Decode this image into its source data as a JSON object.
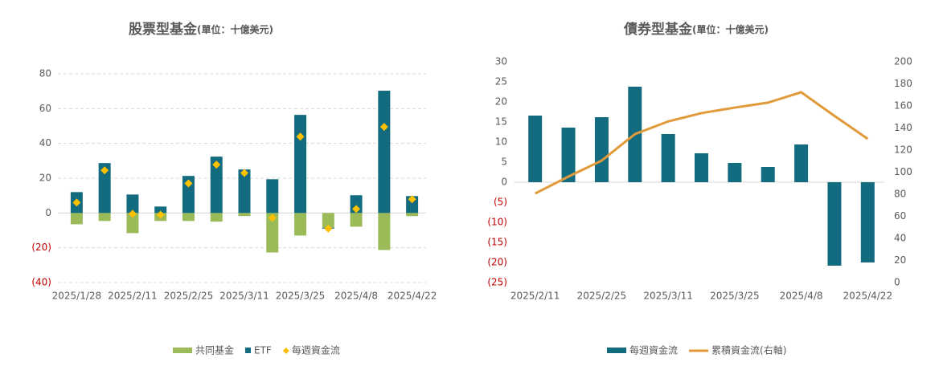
{
  "chart_data": [
    {
      "type": "combo",
      "title": "股票型基金",
      "subtitle": "(單位：十億美元)",
      "categories": [
        "2025/1/28",
        null,
        "2025/2/11",
        null,
        "2025/2/25",
        null,
        "2025/3/11",
        null,
        "2025/3/25",
        null,
        "2025/4/8",
        null,
        "2025/4/22"
      ],
      "series": [
        {
          "name": "共同基金",
          "type": "bar",
          "color": "#9bbb59",
          "values": [
            -6.5,
            -4.6,
            -11.6,
            -4.6,
            -4.6,
            -5,
            -1.8,
            -22.7,
            -13,
            -8.5,
            -7.9,
            -21.3,
            -1.8
          ]
        },
        {
          "name": "ETF",
          "type": "bar",
          "color": "#136b80",
          "values": [
            12,
            28.7,
            10.6,
            3.7,
            21.3,
            32.4,
            25,
            19.4,
            56.4,
            -0.5,
            10.2,
            70.3,
            9.7
          ]
        },
        {
          "name": "每週資金流",
          "type": "scatter",
          "color": "#ffc000",
          "values": [
            6,
            24.5,
            -0.5,
            -1,
            17,
            27.8,
            23,
            -2.8,
            43.9,
            -9,
            2.3,
            49.5,
            7.9
          ]
        }
      ],
      "ylim": [
        -40,
        80
      ],
      "yticks": [
        {
          "value": -40,
          "label": "(40)"
        },
        {
          "value": -20,
          "label": "(20)"
        },
        0,
        20,
        40,
        60,
        80
      ],
      "negative_tick_color": "#c00000",
      "grid": true,
      "legend": "bottom"
    },
    {
      "type": "combo",
      "title": "債券型基金",
      "subtitle": "(單位：十億美元)",
      "categories": [
        "2025/2/11",
        null,
        "2025/2/25",
        null,
        "2025/3/11",
        null,
        "2025/3/25",
        null,
        "2025/4/8",
        null,
        "2025/4/22"
      ],
      "series": [
        {
          "name": "每週資金流",
          "type": "bar",
          "color": "#136b80",
          "values": [
            16.6,
            13.6,
            16.2,
            23.8,
            12,
            7.2,
            4.8,
            3.8,
            9.4,
            -20.8,
            -20
          ]
        },
        {
          "name": "累積資金流(右軸)",
          "type": "line",
          "axis": "y2",
          "color": "#e09a3a",
          "values": [
            80.7,
            96,
            110.5,
            134.5,
            146,
            153.5,
            158.5,
            163,
            172.4,
            151,
            130.2
          ]
        }
      ],
      "ylim": [
        -25,
        30
      ],
      "yticks": [
        {
          "value": -25,
          "label": "(25)"
        },
        {
          "value": -20,
          "label": "(20)"
        },
        {
          "value": -15,
          "label": "(15)"
        },
        {
          "value": -10,
          "label": "(10)"
        },
        {
          "value": -5,
          "label": "(5)"
        },
        0,
        5,
        10,
        15,
        20,
        25,
        30
      ],
      "y2lim": [
        0,
        200
      ],
      "y2ticks": [
        0,
        20,
        40,
        60,
        80,
        100,
        120,
        140,
        160,
        180,
        200
      ],
      "negative_tick_color": "#c00000",
      "grid": false,
      "legend": "bottom"
    }
  ]
}
